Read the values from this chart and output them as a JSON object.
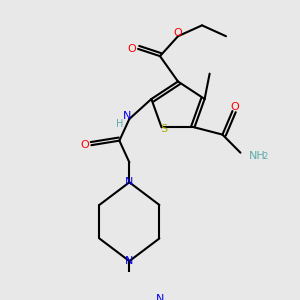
{
  "bg_color": "#e8e8e8",
  "bond_color": "#000000",
  "bond_width": 1.5,
  "atom_colors": {
    "C": "#000000",
    "H": "#5faaaa",
    "N": "#0000ee",
    "O": "#ff0000",
    "S": "#aaaa00"
  },
  "figsize": [
    3.0,
    3.0
  ],
  "dpi": 100
}
